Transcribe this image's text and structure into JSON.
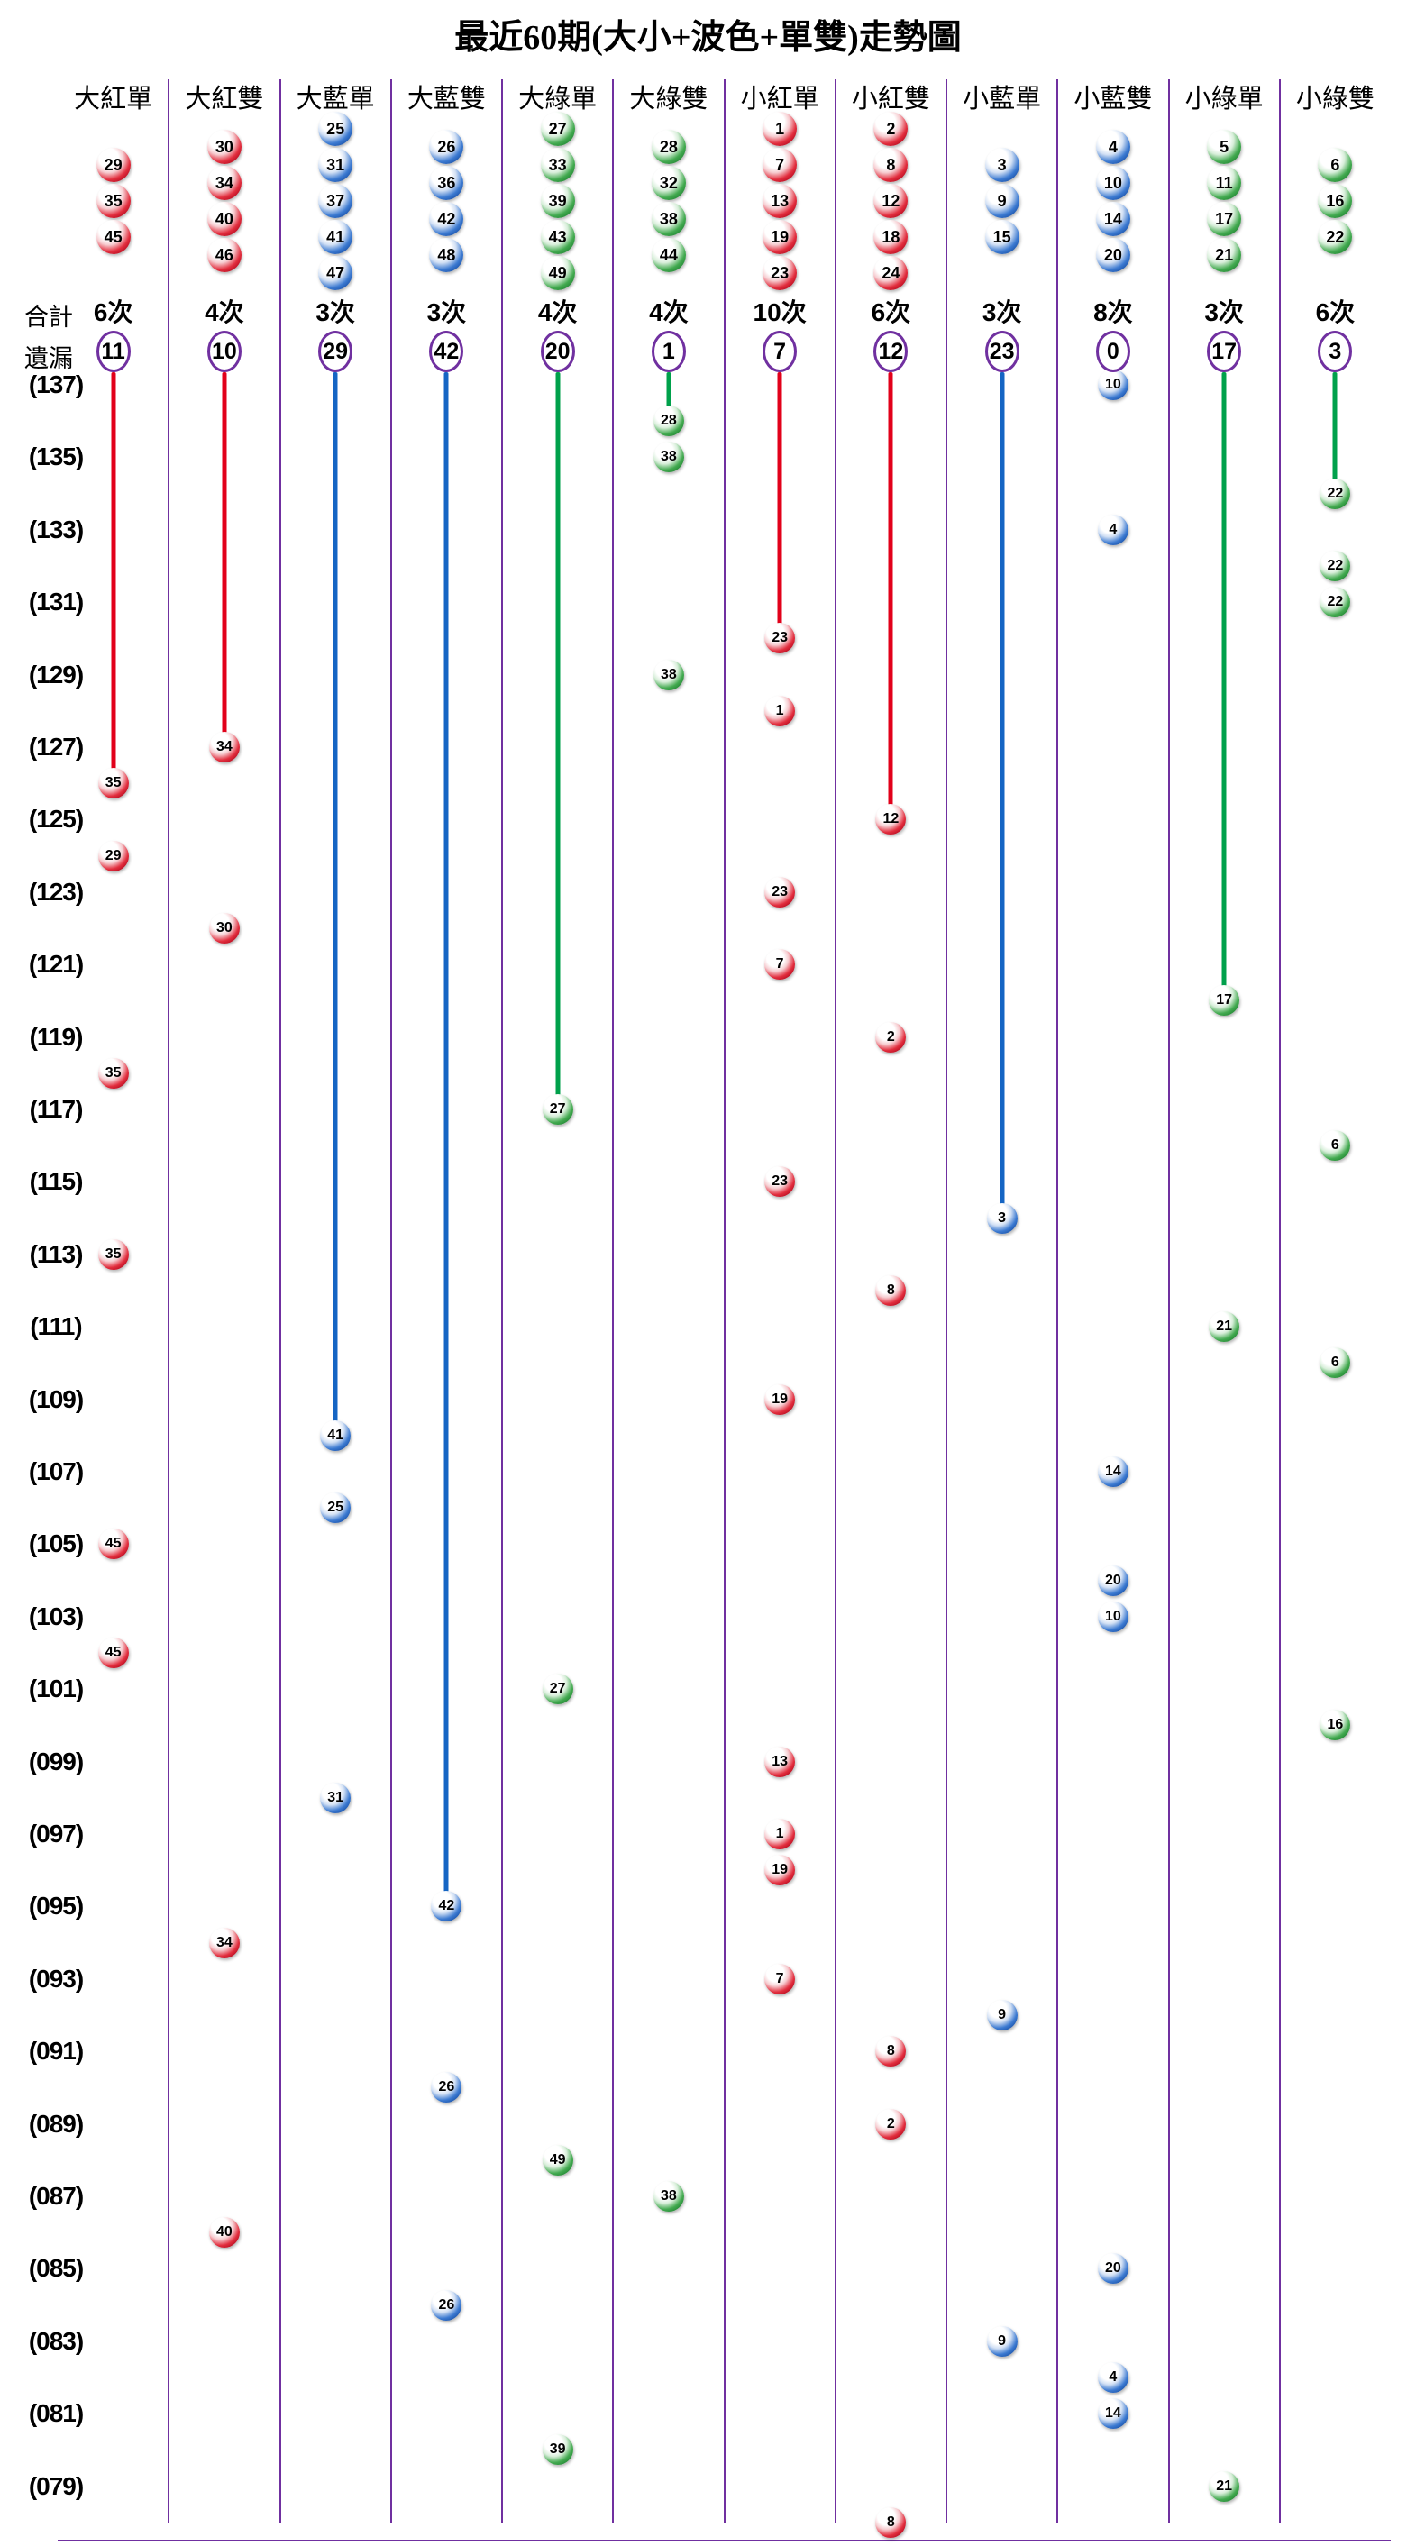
{
  "labels": {
    "total": "合計",
    "miss": "遺漏"
  },
  "colors": {
    "red": "#E2001A",
    "blue": "#1565C4",
    "green": "#00A14B",
    "separator": "#7030A0",
    "miss_circle_stroke": "#7030A0",
    "background": "#FFFFFF"
  },
  "chart_data": {
    "type": "scatter",
    "title": "最近60期(大小+波色+單雙)走勢圖",
    "xlabel": "",
    "ylabel": "",
    "period_range": {
      "first": 137,
      "last": 78
    },
    "legend_note": "each column lists its member lottery numbers, total hit count in 60 draws, and current miss streak",
    "rows": [
      {
        "v": 137,
        "t": "(137)"
      },
      {
        "v": 135,
        "t": "(135)"
      },
      {
        "v": 133,
        "t": "(133)"
      },
      {
        "v": 131,
        "t": "(131)"
      },
      {
        "v": 129,
        "t": "(129)"
      },
      {
        "v": 127,
        "t": "(127)"
      },
      {
        "v": 125,
        "t": "(125)"
      },
      {
        "v": 123,
        "t": "(123)"
      },
      {
        "v": 121,
        "t": "(121)"
      },
      {
        "v": 119,
        "t": "(119)"
      },
      {
        "v": 117,
        "t": "(117)"
      },
      {
        "v": 115,
        "t": "(115)"
      },
      {
        "v": 113,
        "t": "(113)"
      },
      {
        "v": 111,
        "t": "(111)"
      },
      {
        "v": 109,
        "t": "(109)"
      },
      {
        "v": 107,
        "t": "(107)"
      },
      {
        "v": 105,
        "t": "(105)"
      },
      {
        "v": 103,
        "t": "(103)"
      },
      {
        "v": 101,
        "t": "(101)"
      },
      {
        "v": 99,
        "t": "(099)"
      },
      {
        "v": 97,
        "t": "(097)"
      },
      {
        "v": 95,
        "t": "(095)"
      },
      {
        "v": 93,
        "t": "(093)"
      },
      {
        "v": 91,
        "t": "(091)"
      },
      {
        "v": 89,
        "t": "(089)"
      },
      {
        "v": 87,
        "t": "(087)"
      },
      {
        "v": 85,
        "t": "(085)"
      },
      {
        "v": 83,
        "t": "(083)"
      },
      {
        "v": 81,
        "t": "(081)"
      },
      {
        "v": 79,
        "t": "(079)"
      }
    ],
    "columns": [
      {
        "label": "大紅單",
        "color": "red",
        "cluster": [
          29,
          35,
          45
        ],
        "total": "6次",
        "miss": 11,
        "hits": [
          {
            "p": 126,
            "n": 35
          },
          {
            "p": 124,
            "n": 29
          },
          {
            "p": 118,
            "n": 35
          },
          {
            "p": 113,
            "n": 35
          },
          {
            "p": 105,
            "n": 45
          },
          {
            "p": 102,
            "n": 45
          }
        ]
      },
      {
        "label": "大紅雙",
        "color": "red",
        "cluster": [
          30,
          34,
          40,
          46
        ],
        "total": "4次",
        "miss": 10,
        "hits": [
          {
            "p": 127,
            "n": 34
          },
          {
            "p": 122,
            "n": 30
          },
          {
            "p": 94,
            "n": 34
          },
          {
            "p": 86,
            "n": 40
          }
        ]
      },
      {
        "label": "大藍單",
        "color": "blue",
        "cluster": [
          25,
          31,
          37,
          41,
          47
        ],
        "total": "3次",
        "miss": 29,
        "hits": [
          {
            "p": 108,
            "n": 41
          },
          {
            "p": 106,
            "n": 25
          },
          {
            "p": 98,
            "n": 31
          }
        ]
      },
      {
        "label": "大藍雙",
        "color": "blue",
        "cluster": [
          26,
          36,
          42,
          48
        ],
        "total": "3次",
        "miss": 42,
        "hits": [
          {
            "p": 95,
            "n": 42
          },
          {
            "p": 90,
            "n": 26
          },
          {
            "p": 84,
            "n": 26
          }
        ]
      },
      {
        "label": "大綠單",
        "color": "green",
        "cluster": [
          27,
          33,
          39,
          43,
          49
        ],
        "total": "4次",
        "miss": 20,
        "hits": [
          {
            "p": 117,
            "n": 27
          },
          {
            "p": 101,
            "n": 27
          },
          {
            "p": 88,
            "n": 49
          },
          {
            "p": 80,
            "n": 39
          }
        ]
      },
      {
        "label": "大綠雙",
        "color": "green",
        "cluster": [
          28,
          32,
          38,
          44
        ],
        "total": "4次",
        "miss": 1,
        "hits": [
          {
            "p": 136,
            "n": 28
          },
          {
            "p": 135,
            "n": 38
          },
          {
            "p": 129,
            "n": 38
          },
          {
            "p": 87,
            "n": 38
          }
        ]
      },
      {
        "label": "小紅單",
        "color": "red",
        "cluster": [
          1,
          7,
          13,
          19,
          23
        ],
        "total": "10次",
        "miss": 7,
        "hits": [
          {
            "p": 130,
            "n": 23
          },
          {
            "p": 128,
            "n": 1
          },
          {
            "p": 123,
            "n": 23
          },
          {
            "p": 121,
            "n": 7
          },
          {
            "p": 115,
            "n": 23
          },
          {
            "p": 109,
            "n": 19
          },
          {
            "p": 99,
            "n": 13
          },
          {
            "p": 97,
            "n": 1
          },
          {
            "p": 96,
            "n": 19
          },
          {
            "p": 93,
            "n": 7
          }
        ]
      },
      {
        "label": "小紅雙",
        "color": "red",
        "cluster": [
          2,
          8,
          12,
          18,
          24
        ],
        "total": "6次",
        "miss": 12,
        "hits": [
          {
            "p": 125,
            "n": 12
          },
          {
            "p": 119,
            "n": 2
          },
          {
            "p": 112,
            "n": 8
          },
          {
            "p": 91,
            "n": 8
          },
          {
            "p": 89,
            "n": 2
          },
          {
            "p": 78,
            "n": 8
          }
        ]
      },
      {
        "label": "小藍單",
        "color": "blue",
        "cluster": [
          3,
          9,
          15
        ],
        "total": "3次",
        "miss": 23,
        "hits": [
          {
            "p": 114,
            "n": 3
          },
          {
            "p": 92,
            "n": 9
          },
          {
            "p": 83,
            "n": 9
          }
        ]
      },
      {
        "label": "小藍雙",
        "color": "blue",
        "cluster": [
          4,
          10,
          14,
          20
        ],
        "total": "8次",
        "miss": 0,
        "hits": [
          {
            "p": 137,
            "n": 10
          },
          {
            "p": 133,
            "n": 4
          },
          {
            "p": 107,
            "n": 14
          },
          {
            "p": 104,
            "n": 20
          },
          {
            "p": 103,
            "n": 10
          },
          {
            "p": 85,
            "n": 20
          },
          {
            "p": 82,
            "n": 4
          },
          {
            "p": 81,
            "n": 14
          }
        ]
      },
      {
        "label": "小綠單",
        "color": "green",
        "cluster": [
          5,
          11,
          17,
          21
        ],
        "total": "3次",
        "miss": 17,
        "hits": [
          {
            "p": 120,
            "n": 17
          },
          {
            "p": 111,
            "n": 21
          },
          {
            "p": 79,
            "n": 21
          }
        ]
      },
      {
        "label": "小綠雙",
        "color": "green",
        "cluster": [
          6,
          16,
          22
        ],
        "total": "6次",
        "miss": 3,
        "hits": [
          {
            "p": 134,
            "n": 22
          },
          {
            "p": 132,
            "n": 22
          },
          {
            "p": 131,
            "n": 22
          },
          {
            "p": 116,
            "n": 6
          },
          {
            "p": 110,
            "n": 6
          },
          {
            "p": 100,
            "n": 16
          }
        ]
      }
    ]
  }
}
